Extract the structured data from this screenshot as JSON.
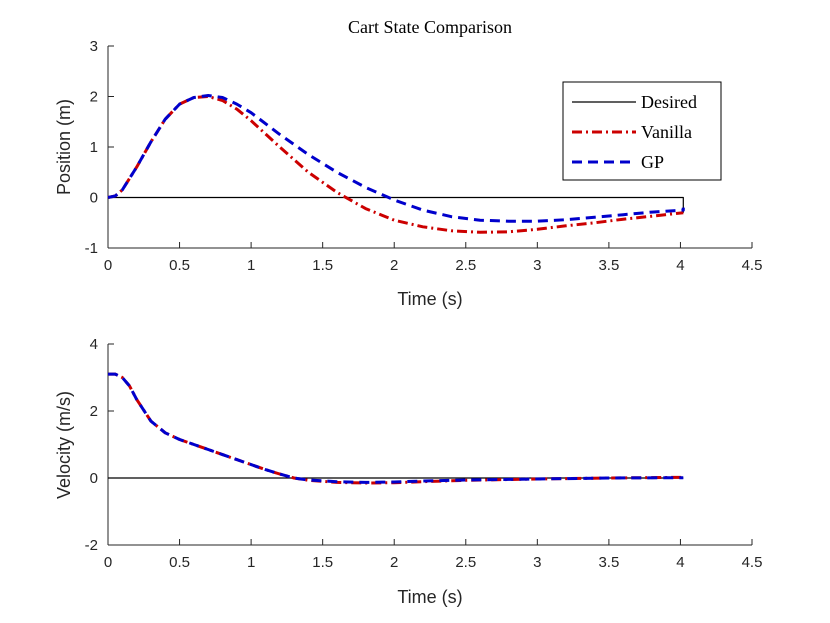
{
  "chart_data": [
    {
      "type": "line",
      "title": "Cart State Comparison",
      "xlabel": "Time (s)",
      "ylabel": "Position (m)",
      "xlim": [
        0,
        4.5
      ],
      "ylim": [
        -1,
        3
      ],
      "xticks": [
        0,
        0.5,
        1,
        1.5,
        2,
        2.5,
        3,
        3.5,
        4,
        4.5
      ],
      "xtick_labels": [
        "0",
        "0.5",
        "1",
        "1.5",
        "2",
        "2.5",
        "3",
        "3.5",
        "4",
        "4.5"
      ],
      "yticks": [
        -1,
        0,
        1,
        2,
        3
      ],
      "ytick_labels": [
        "-1",
        "0",
        "1",
        "2",
        "3"
      ],
      "legend": {
        "location": "upper-right",
        "entries": [
          "Desired",
          "Vanilla",
          "GP"
        ]
      },
      "series": [
        {
          "name": "Desired",
          "color": "#000000",
          "style": "solid",
          "x": [
            0,
            4.02,
            4.02
          ],
          "y": [
            0,
            0,
            -0.3
          ]
        },
        {
          "name": "Vanilla",
          "color": "#cc0000",
          "style": "dashdot",
          "x": [
            0,
            0.05,
            0.1,
            0.2,
            0.3,
            0.4,
            0.5,
            0.6,
            0.7,
            0.8,
            0.9,
            1.0,
            1.2,
            1.4,
            1.6,
            1.8,
            2.0,
            2.2,
            2.4,
            2.6,
            2.8,
            3.0,
            3.2,
            3.4,
            3.6,
            3.8,
            4.02
          ],
          "y": [
            0,
            0.03,
            0.15,
            0.6,
            1.1,
            1.55,
            1.85,
            1.98,
            2.0,
            1.92,
            1.75,
            1.52,
            1.0,
            0.5,
            0.1,
            -0.22,
            -0.45,
            -0.58,
            -0.66,
            -0.69,
            -0.68,
            -0.63,
            -0.56,
            -0.5,
            -0.43,
            -0.37,
            -0.3
          ]
        },
        {
          "name": "GP",
          "color": "#0000cc",
          "style": "dashed",
          "x": [
            0,
            0.05,
            0.1,
            0.2,
            0.3,
            0.4,
            0.5,
            0.6,
            0.7,
            0.8,
            0.9,
            1.0,
            1.2,
            1.4,
            1.6,
            1.8,
            2.0,
            2.2,
            2.4,
            2.6,
            2.8,
            3.0,
            3.2,
            3.4,
            3.6,
            3.8,
            4.02,
            4.02
          ],
          "y": [
            0,
            0.03,
            0.15,
            0.6,
            1.1,
            1.55,
            1.85,
            1.98,
            2.02,
            1.98,
            1.85,
            1.68,
            1.25,
            0.85,
            0.5,
            0.2,
            -0.05,
            -0.25,
            -0.38,
            -0.45,
            -0.47,
            -0.47,
            -0.44,
            -0.39,
            -0.34,
            -0.29,
            -0.25,
            -0.2
          ]
        }
      ]
    },
    {
      "type": "line",
      "title": "",
      "xlabel": "Time (s)",
      "ylabel": "Velocity (m/s)",
      "xlim": [
        0,
        4.5
      ],
      "ylim": [
        -2,
        4
      ],
      "xticks": [
        0,
        0.5,
        1,
        1.5,
        2,
        2.5,
        3,
        3.5,
        4,
        4.5
      ],
      "xtick_labels": [
        "0",
        "0.5",
        "1",
        "1.5",
        "2",
        "2.5",
        "3",
        "3.5",
        "4",
        "4.5"
      ],
      "yticks": [
        -2,
        0,
        2,
        4
      ],
      "ytick_labels": [
        "-2",
        "0",
        "2",
        "4"
      ],
      "series": [
        {
          "name": "Desired",
          "color": "#000000",
          "style": "solid",
          "x": [
            0,
            4.02
          ],
          "y": [
            0,
            0
          ]
        },
        {
          "name": "Vanilla",
          "color": "#cc0000",
          "style": "dashdot",
          "x": [
            0,
            0.05,
            0.1,
            0.15,
            0.2,
            0.3,
            0.4,
            0.5,
            0.6,
            0.7,
            0.8,
            0.9,
            1.0,
            1.1,
            1.2,
            1.3,
            1.4,
            1.6,
            1.8,
            2.0,
            2.2,
            2.5,
            3.0,
            3.5,
            4.02
          ],
          "y": [
            3.1,
            3.1,
            3.0,
            2.75,
            2.35,
            1.7,
            1.35,
            1.15,
            1.0,
            0.85,
            0.7,
            0.55,
            0.4,
            0.25,
            0.12,
            0.0,
            -0.07,
            -0.13,
            -0.15,
            -0.14,
            -0.11,
            -0.07,
            -0.03,
            0.0,
            0.02
          ]
        },
        {
          "name": "GP",
          "color": "#0000cc",
          "style": "dashed",
          "x": [
            0,
            0.05,
            0.1,
            0.15,
            0.2,
            0.3,
            0.4,
            0.5,
            0.6,
            0.7,
            0.8,
            0.9,
            1.0,
            1.1,
            1.2,
            1.3,
            1.4,
            1.6,
            1.8,
            2.0,
            2.2,
            2.5,
            3.0,
            3.5,
            4.02
          ],
          "y": [
            3.1,
            3.1,
            3.0,
            2.75,
            2.35,
            1.7,
            1.35,
            1.15,
            1.0,
            0.85,
            0.7,
            0.55,
            0.4,
            0.25,
            0.12,
            0.0,
            -0.06,
            -0.11,
            -0.13,
            -0.12,
            -0.09,
            -0.06,
            -0.03,
            0.0,
            0.01
          ]
        }
      ]
    }
  ]
}
